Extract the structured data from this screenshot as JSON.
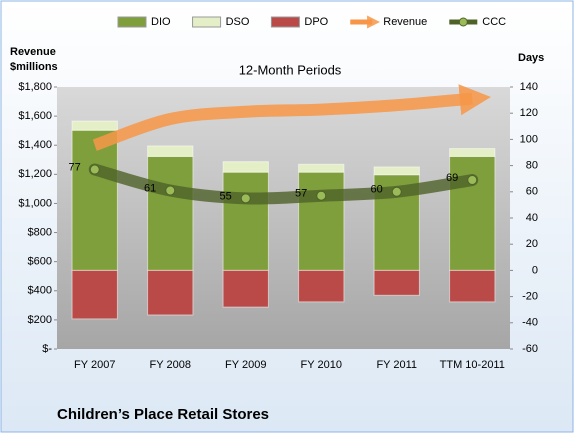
{
  "chart_data": {
    "type": "bar",
    "title": "12-Month Periods",
    "subtitle": "Children’s Place Retail Stores",
    "y_label": [
      "Revenue",
      "$millions"
    ],
    "y2_label": "Days",
    "categories": [
      "FY 2007",
      "FY 2008",
      "FY 2009",
      "FY 2010",
      "FY 2011",
      "TTM 10-2011"
    ],
    "series": [
      {
        "name": "DIO",
        "type": "bar",
        "axis": "y2",
        "color": "#7f9f3c",
        "values": [
          107,
          87,
          75,
          75,
          73,
          87
        ]
      },
      {
        "name": "DSO",
        "type": "bar",
        "axis": "y2",
        "color": "#e4efc8",
        "values": [
          7,
          8,
          8,
          6,
          6,
          6
        ]
      },
      {
        "name": "DPO",
        "type": "bar",
        "axis": "y2",
        "color": "#b94a48",
        "values": [
          -37,
          -34,
          -28,
          -24,
          -19,
          -24
        ]
      },
      {
        "name": "Revenue",
        "type": "arrow",
        "axis": "y",
        "color": "#f79646",
        "values": [
          1400,
          1580,
          1630,
          1645,
          1675,
          1720
        ]
      },
      {
        "name": "CCC",
        "type": "line",
        "axis": "y2",
        "color": "#4f6228",
        "values": [
          77,
          61,
          55,
          57,
          60,
          69
        ]
      }
    ],
    "ylim": [
      0,
      1800
    ],
    "yticks": [
      {
        "value": 0,
        "label": "$-"
      },
      {
        "value": 200,
        "label": "$200"
      },
      {
        "value": 400,
        "label": "$400"
      },
      {
        "value": 600,
        "label": "$600"
      },
      {
        "value": 800,
        "label": "$800"
      },
      {
        "value": 1000,
        "label": "$1,000"
      },
      {
        "value": 1200,
        "label": "$1,200"
      },
      {
        "value": 1400,
        "label": "$1,400"
      },
      {
        "value": 1600,
        "label": "$1,600"
      },
      {
        "value": 1800,
        "label": "$1,800"
      }
    ],
    "y2lim": [
      -60,
      140
    ],
    "y2ticks": [
      -60,
      -40,
      -20,
      0,
      20,
      40,
      60,
      80,
      100,
      120,
      140
    ],
    "legend": "top",
    "grid": false
  }
}
